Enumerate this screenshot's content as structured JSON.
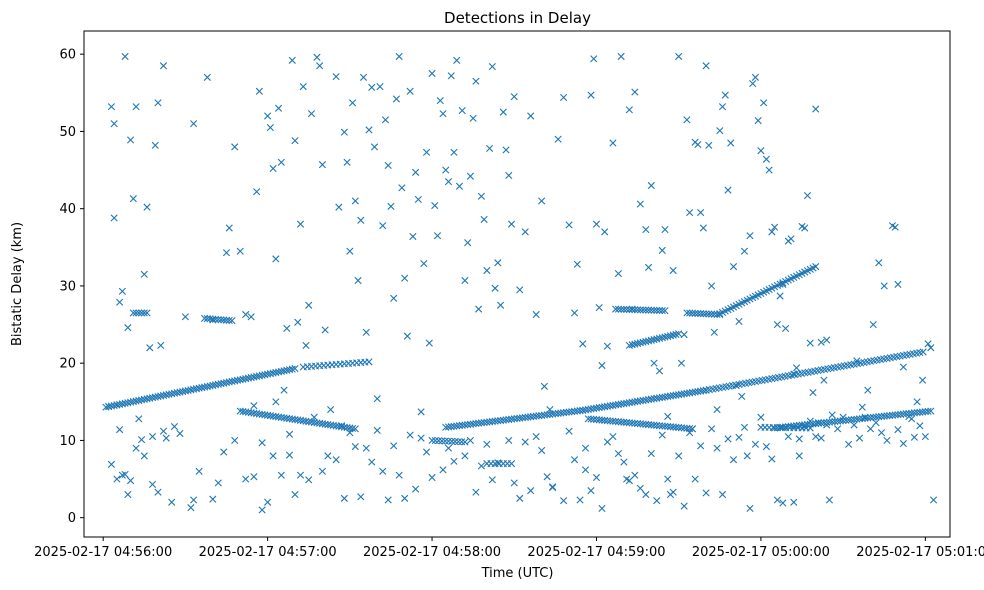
{
  "chart_data": {
    "type": "scatter",
    "title": "Detections in Delay",
    "xlabel": "Time (UTC)",
    "ylabel": "Bistatic Delay (km)",
    "x_units": "seconds after 2025-02-17 04:56:00",
    "xlim": [
      -7,
      309
    ],
    "ylim": [
      -2.5,
      63
    ],
    "grid": false,
    "marker": "x",
    "color": "#1f77b4",
    "x_ticks": [
      {
        "value": 0,
        "label": "2025-02-17 04:56:00"
      },
      {
        "value": 60,
        "label": "2025-02-17 04:57:00"
      },
      {
        "value": 120,
        "label": "2025-02-17 04:58:00"
      },
      {
        "value": 180,
        "label": "2025-02-17 04:59:00"
      },
      {
        "value": 240,
        "label": "2025-02-17 05:00:00"
      },
      {
        "value": 300,
        "label": "2025-02-17 05:01:00"
      }
    ],
    "y_ticks": [
      {
        "value": 0,
        "label": "0"
      },
      {
        "value": 10,
        "label": "10"
      },
      {
        "value": 20,
        "label": "20"
      },
      {
        "value": 30,
        "label": "30"
      },
      {
        "value": 40,
        "label": "40"
      },
      {
        "value": 50,
        "label": "50"
      },
      {
        "value": 60,
        "label": "60"
      }
    ],
    "tracks": [
      {
        "x": [
          1,
          70
        ],
        "y": [
          14.3,
          19.3
        ],
        "step": 1
      },
      {
        "x": [
          73,
          98
        ],
        "y": [
          19.5,
          20.2
        ],
        "step": 1.5
      },
      {
        "x": [
          50,
          92
        ],
        "y": [
          13.8,
          11.5
        ],
        "step": 1
      },
      {
        "x": [
          125,
          175
        ],
        "y": [
          11.7,
          13.9
        ],
        "step": 1
      },
      {
        "x": [
          175,
          220
        ],
        "y": [
          13.9,
          16.5
        ],
        "step": 1
      },
      {
        "x": [
          220,
          300
        ],
        "y": [
          16.5,
          21.5
        ],
        "step": 1.2
      },
      {
        "x": [
          177,
          215
        ],
        "y": [
          12.8,
          11.5
        ],
        "step": 1
      },
      {
        "x": [
          245,
          302
        ],
        "y": [
          11.6,
          13.8
        ],
        "step": 1
      },
      {
        "x": [
          187,
          205
        ],
        "y": [
          27,
          26.8
        ],
        "step": 1
      },
      {
        "x": [
          192,
          210
        ],
        "y": [
          22.3,
          23.8
        ],
        "step": 1
      },
      {
        "x": [
          213,
          225
        ],
        "y": [
          26.5,
          26.3
        ],
        "step": 1
      },
      {
        "x": [
          225,
          260
        ],
        "y": [
          26.4,
          32.5
        ],
        "step": 1
      },
      {
        "x": [
          11,
          16
        ],
        "y": [
          26.5,
          26.5
        ],
        "step": 1
      },
      {
        "x": [
          37,
          47
        ],
        "y": [
          25.8,
          25.5
        ],
        "step": 1
      },
      {
        "x": [
          120,
          132
        ],
        "y": [
          10,
          9.8
        ],
        "step": 1.2
      },
      {
        "x": [
          140,
          150
        ],
        "y": [
          7,
          7
        ],
        "step": 1.5
      },
      {
        "x": [
          240,
          258
        ],
        "y": [
          11.7,
          11.6
        ],
        "step": 1.5
      }
    ],
    "scatter_points": [
      [
        2,
        14.4
      ],
      [
        3,
        53.2
      ],
      [
        4,
        51.0
      ],
      [
        4,
        38.8
      ],
      [
        5,
        14.6
      ],
      [
        6,
        27.9
      ],
      [
        7,
        29.3
      ],
      [
        8,
        59.7
      ],
      [
        9,
        24.6
      ],
      [
        10,
        48.9
      ],
      [
        11,
        41.3
      ],
      [
        12,
        53.2
      ],
      [
        13,
        12.8
      ],
      [
        15,
        31.5
      ],
      [
        16,
        40.2
      ],
      [
        17,
        22.0
      ],
      [
        18,
        10.5
      ],
      [
        19,
        48.2
      ],
      [
        20,
        53.7
      ],
      [
        21,
        22.3
      ],
      [
        22,
        58.5
      ],
      [
        23,
        10.3
      ],
      [
        25,
        2.0
      ],
      [
        28,
        10.9
      ],
      [
        30,
        26.0
      ],
      [
        32,
        1.3
      ],
      [
        33,
        51.0
      ],
      [
        38,
        57.0
      ],
      [
        40,
        25.6
      ],
      [
        44,
        8.5
      ],
      [
        45,
        34.3
      ],
      [
        46,
        37.5
      ],
      [
        48,
        48.0
      ],
      [
        50,
        34.5
      ],
      [
        52,
        26.3
      ],
      [
        54,
        26.0
      ],
      [
        55,
        14.5
      ],
      [
        56,
        42.2
      ],
      [
        57,
        55.2
      ],
      [
        58,
        9.7
      ],
      [
        60,
        52.0
      ],
      [
        61,
        50.5
      ],
      [
        62,
        45.2
      ],
      [
        63,
        33.5
      ],
      [
        64,
        53.0
      ],
      [
        65,
        46.0
      ],
      [
        66,
        16.5
      ],
      [
        67,
        24.5
      ],
      [
        68,
        10.8
      ],
      [
        69,
        59.2
      ],
      [
        70,
        48.8
      ],
      [
        71,
        25.3
      ],
      [
        72,
        38.0
      ],
      [
        73,
        55.8
      ],
      [
        74,
        22.3
      ],
      [
        75,
        27.5
      ],
      [
        76,
        52.3
      ],
      [
        77,
        13.0
      ],
      [
        78,
        59.6
      ],
      [
        79,
        58.5
      ],
      [
        80,
        45.7
      ],
      [
        81,
        24.3
      ],
      [
        82,
        8.0
      ],
      [
        83,
        14.0
      ],
      [
        85,
        57.1
      ],
      [
        86,
        40.2
      ],
      [
        87,
        11.9
      ],
      [
        88,
        49.9
      ],
      [
        89,
        46.0
      ],
      [
        90,
        34.5
      ],
      [
        91,
        53.7
      ],
      [
        92,
        41.0
      ],
      [
        93,
        30.7
      ],
      [
        94,
        38.5
      ],
      [
        95,
        57.0
      ],
      [
        96,
        24.0
      ],
      [
        97,
        50.2
      ],
      [
        98,
        55.7
      ],
      [
        99,
        48.0
      ],
      [
        100,
        15.4
      ],
      [
        101,
        55.8
      ],
      [
        102,
        37.8
      ],
      [
        103,
        51.5
      ],
      [
        104,
        45.6
      ],
      [
        105,
        40.3
      ],
      [
        106,
        28.4
      ],
      [
        107,
        54.2
      ],
      [
        108,
        59.7
      ],
      [
        109,
        42.7
      ],
      [
        110,
        31.0
      ],
      [
        111,
        23.5
      ],
      [
        112,
        55.2
      ],
      [
        113,
        36.4
      ],
      [
        114,
        44.7
      ],
      [
        115,
        41.2
      ],
      [
        116,
        13.7
      ],
      [
        117,
        32.9
      ],
      [
        118,
        47.3
      ],
      [
        119,
        22.6
      ],
      [
        120,
        57.5
      ],
      [
        121,
        40.4
      ],
      [
        122,
        36.5
      ],
      [
        123,
        54.0
      ],
      [
        124,
        52.3
      ],
      [
        125,
        45.0
      ],
      [
        126,
        43.5
      ],
      [
        127,
        57.2
      ],
      [
        128,
        47.3
      ],
      [
        129,
        59.2
      ],
      [
        130,
        42.9
      ],
      [
        131,
        52.7
      ],
      [
        132,
        30.7
      ],
      [
        133,
        35.6
      ],
      [
        134,
        44.2
      ],
      [
        135,
        51.7
      ],
      [
        136,
        56.5
      ],
      [
        137,
        27.0
      ],
      [
        138,
        41.6
      ],
      [
        139,
        38.6
      ],
      [
        140,
        32.0
      ],
      [
        141,
        47.8
      ],
      [
        142,
        58.4
      ],
      [
        143,
        29.7
      ],
      [
        144,
        33.0
      ],
      [
        145,
        27.5
      ],
      [
        146,
        52.5
      ],
      [
        147,
        47.6
      ],
      [
        148,
        44.3
      ],
      [
        149,
        38.0
      ],
      [
        150,
        54.5
      ],
      [
        152,
        29.5
      ],
      [
        154,
        37.0
      ],
      [
        156,
        52.0
      ],
      [
        158,
        26.3
      ],
      [
        160,
        41.0
      ],
      [
        161,
        17.0
      ],
      [
        163,
        14.0
      ],
      [
        164,
        4.0
      ],
      [
        166,
        49.0
      ],
      [
        168,
        54.4
      ],
      [
        170,
        37.9
      ],
      [
        172,
        26.5
      ],
      [
        173,
        32.8
      ],
      [
        175,
        22.5
      ],
      [
        176,
        6.2
      ],
      [
        178,
        54.7
      ],
      [
        179,
        59.4
      ],
      [
        180,
        38.0
      ],
      [
        181,
        27.2
      ],
      [
        182,
        19.7
      ],
      [
        183,
        37.0
      ],
      [
        184,
        22.2
      ],
      [
        186,
        48.5
      ],
      [
        188,
        31.6
      ],
      [
        189,
        59.7
      ],
      [
        191,
        5.0
      ],
      [
        192,
        52.8
      ],
      [
        193,
        27.0
      ],
      [
        194,
        55.1
      ],
      [
        196,
        40.6
      ],
      [
        198,
        37.3
      ],
      [
        199,
        32.4
      ],
      [
        200,
        43.0
      ],
      [
        201,
        20.0
      ],
      [
        203,
        19.0
      ],
      [
        204,
        34.6
      ],
      [
        205,
        37.3
      ],
      [
        206,
        13.1
      ],
      [
        207,
        3.0
      ],
      [
        208,
        32.0
      ],
      [
        210,
        59.7
      ],
      [
        211,
        20.0
      ],
      [
        212,
        23.7
      ],
      [
        213,
        51.5
      ],
      [
        214,
        39.5
      ],
      [
        215,
        11.5
      ],
      [
        216,
        48.6
      ],
      [
        217,
        48.3
      ],
      [
        218,
        39.5
      ],
      [
        219,
        37.5
      ],
      [
        220,
        58.5
      ],
      [
        221,
        48.2
      ],
      [
        222,
        30.0
      ],
      [
        223,
        24.0
      ],
      [
        224,
        14.0
      ],
      [
        225,
        50.1
      ],
      [
        226,
        53.2
      ],
      [
        227,
        54.7
      ],
      [
        228,
        42.4
      ],
      [
        229,
        48.5
      ],
      [
        230,
        32.5
      ],
      [
        231,
        17.1
      ],
      [
        232,
        25.4
      ],
      [
        233,
        15.7
      ],
      [
        234,
        34.5
      ],
      [
        235,
        8.0
      ],
      [
        236,
        36.5
      ],
      [
        237,
        56.2
      ],
      [
        238,
        57.0
      ],
      [
        239,
        51.4
      ],
      [
        240,
        47.5
      ],
      [
        241,
        53.7
      ],
      [
        242,
        46.4
      ],
      [
        243,
        45.0
      ],
      [
        244,
        37.0
      ],
      [
        245,
        37.6
      ],
      [
        246,
        25.0
      ],
      [
        247,
        28.7
      ],
      [
        248,
        30.2
      ],
      [
        249,
        24.5
      ],
      [
        250,
        35.8
      ],
      [
        251,
        36.1
      ],
      [
        252,
        18.6
      ],
      [
        253,
        19.4
      ],
      [
        254,
        8.0
      ],
      [
        255,
        37.7
      ],
      [
        256,
        37.5
      ],
      [
        257,
        41.7
      ],
      [
        258,
        22.6
      ],
      [
        259,
        16.2
      ],
      [
        260,
        52.9
      ],
      [
        261,
        12.3
      ],
      [
        262,
        22.7
      ],
      [
        263,
        17.8
      ],
      [
        264,
        23.0
      ],
      [
        265,
        2.3
      ],
      [
        3,
        6.9
      ],
      [
        5,
        5.0
      ],
      [
        6,
        11.4
      ],
      [
        7,
        5.5
      ],
      [
        8,
        5.6
      ],
      [
        9,
        3.0
      ],
      [
        10,
        4.8
      ],
      [
        12,
        9.0
      ],
      [
        14,
        10.1
      ],
      [
        15,
        8.0
      ],
      [
        18,
        4.3
      ],
      [
        20,
        3.3
      ],
      [
        22,
        11.2
      ],
      [
        26,
        11.8
      ],
      [
        33,
        2.3
      ],
      [
        35,
        6.0
      ],
      [
        40,
        2.4
      ],
      [
        42,
        4.5
      ],
      [
        48,
        10.0
      ],
      [
        52,
        5.0
      ],
      [
        55,
        5.3
      ],
      [
        58,
        1.0
      ],
      [
        60,
        2.0
      ],
      [
        62,
        8.0
      ],
      [
        63,
        15.0
      ],
      [
        65,
        5.5
      ],
      [
        68,
        8.1
      ],
      [
        70,
        3.0
      ],
      [
        72,
        5.5
      ],
      [
        75,
        4.9
      ],
      [
        80,
        6.0
      ],
      [
        85,
        7.5
      ],
      [
        88,
        2.5
      ],
      [
        90,
        11.0
      ],
      [
        92,
        9.2
      ],
      [
        94,
        2.7
      ],
      [
        96,
        9.0
      ],
      [
        98,
        7.2
      ],
      [
        100,
        11.3
      ],
      [
        102,
        6.0
      ],
      [
        104,
        2.3
      ],
      [
        106,
        9.3
      ],
      [
        108,
        5.5
      ],
      [
        110,
        2.5
      ],
      [
        112,
        10.7
      ],
      [
        114,
        3.7
      ],
      [
        116,
        10.3
      ],
      [
        118,
        8.5
      ],
      [
        120,
        5.2
      ],
      [
        124,
        6.2
      ],
      [
        126,
        9.0
      ],
      [
        128,
        7.3
      ],
      [
        132,
        8.0
      ],
      [
        134,
        10.0
      ],
      [
        136,
        3.3
      ],
      [
        138,
        6.7
      ],
      [
        140,
        9.5
      ],
      [
        142,
        4.9
      ],
      [
        144,
        7.1
      ],
      [
        148,
        10.0
      ],
      [
        150,
        4.5
      ],
      [
        152,
        2.5
      ],
      [
        154,
        9.8
      ],
      [
        156,
        3.5
      ],
      [
        158,
        10.5
      ],
      [
        160,
        8.7
      ],
      [
        162,
        5.3
      ],
      [
        164,
        3.9
      ],
      [
        168,
        2.2
      ],
      [
        170,
        11.2
      ],
      [
        172,
        7.5
      ],
      [
        174,
        2.3
      ],
      [
        176,
        9.0
      ],
      [
        178,
        3.5
      ],
      [
        180,
        5.2
      ],
      [
        182,
        1.2
      ],
      [
        184,
        9.8
      ],
      [
        186,
        10.5
      ],
      [
        188,
        8.3
      ],
      [
        190,
        7.2
      ],
      [
        192,
        4.8
      ],
      [
        194,
        5.5
      ],
      [
        196,
        3.8
      ],
      [
        198,
        3.0
      ],
      [
        200,
        8.3
      ],
      [
        202,
        2.2
      ],
      [
        204,
        10.7
      ],
      [
        206,
        5.0
      ],
      [
        208,
        3.3
      ],
      [
        210,
        8.0
      ],
      [
        212,
        1.5
      ],
      [
        214,
        11.0
      ],
      [
        216,
        5.0
      ],
      [
        218,
        9.3
      ],
      [
        220,
        3.2
      ],
      [
        222,
        11.5
      ],
      [
        224,
        9.0
      ],
      [
        226,
        3.0
      ],
      [
        228,
        10.2
      ],
      [
        230,
        7.5
      ],
      [
        232,
        10.4
      ],
      [
        234,
        11.7
      ],
      [
        236,
        1.2
      ],
      [
        238,
        9.5
      ],
      [
        240,
        13.0
      ],
      [
        242,
        9.2
      ],
      [
        244,
        7.6
      ],
      [
        246,
        2.3
      ],
      [
        248,
        1.9
      ],
      [
        250,
        10.5
      ],
      [
        252,
        2.0
      ],
      [
        254,
        10.2
      ],
      [
        256,
        11.8
      ],
      [
        258,
        12.5
      ],
      [
        260,
        10.5
      ],
      [
        262,
        10.3
      ],
      [
        264,
        12.0
      ],
      [
        266,
        13.3
      ],
      [
        268,
        11.5
      ],
      [
        270,
        13.0
      ],
      [
        272,
        9.5
      ],
      [
        274,
        12.0
      ],
      [
        276,
        10.3
      ],
      [
        278,
        13.0
      ],
      [
        280,
        11.5
      ],
      [
        282,
        12.3
      ],
      [
        284,
        11.0
      ],
      [
        286,
        10.0
      ],
      [
        290,
        11.4
      ],
      [
        292,
        9.6
      ],
      [
        294,
        13.1
      ],
      [
        296,
        10.4
      ],
      [
        298,
        11.9
      ],
      [
        300,
        10.5
      ],
      [
        301,
        22.5
      ],
      [
        302,
        22.0
      ],
      [
        303,
        2.3
      ],
      [
        299,
        17.8
      ],
      [
        297,
        15.0
      ],
      [
        295,
        12.8
      ],
      [
        292,
        19.5
      ],
      [
        290,
        30.2
      ],
      [
        289,
        37.6
      ],
      [
        288,
        37.8
      ],
      [
        285,
        30.0
      ],
      [
        283,
        33.0
      ],
      [
        281,
        25.0
      ],
      [
        279,
        16.5
      ],
      [
        277,
        14.3
      ],
      [
        275,
        20.3
      ]
    ]
  }
}
